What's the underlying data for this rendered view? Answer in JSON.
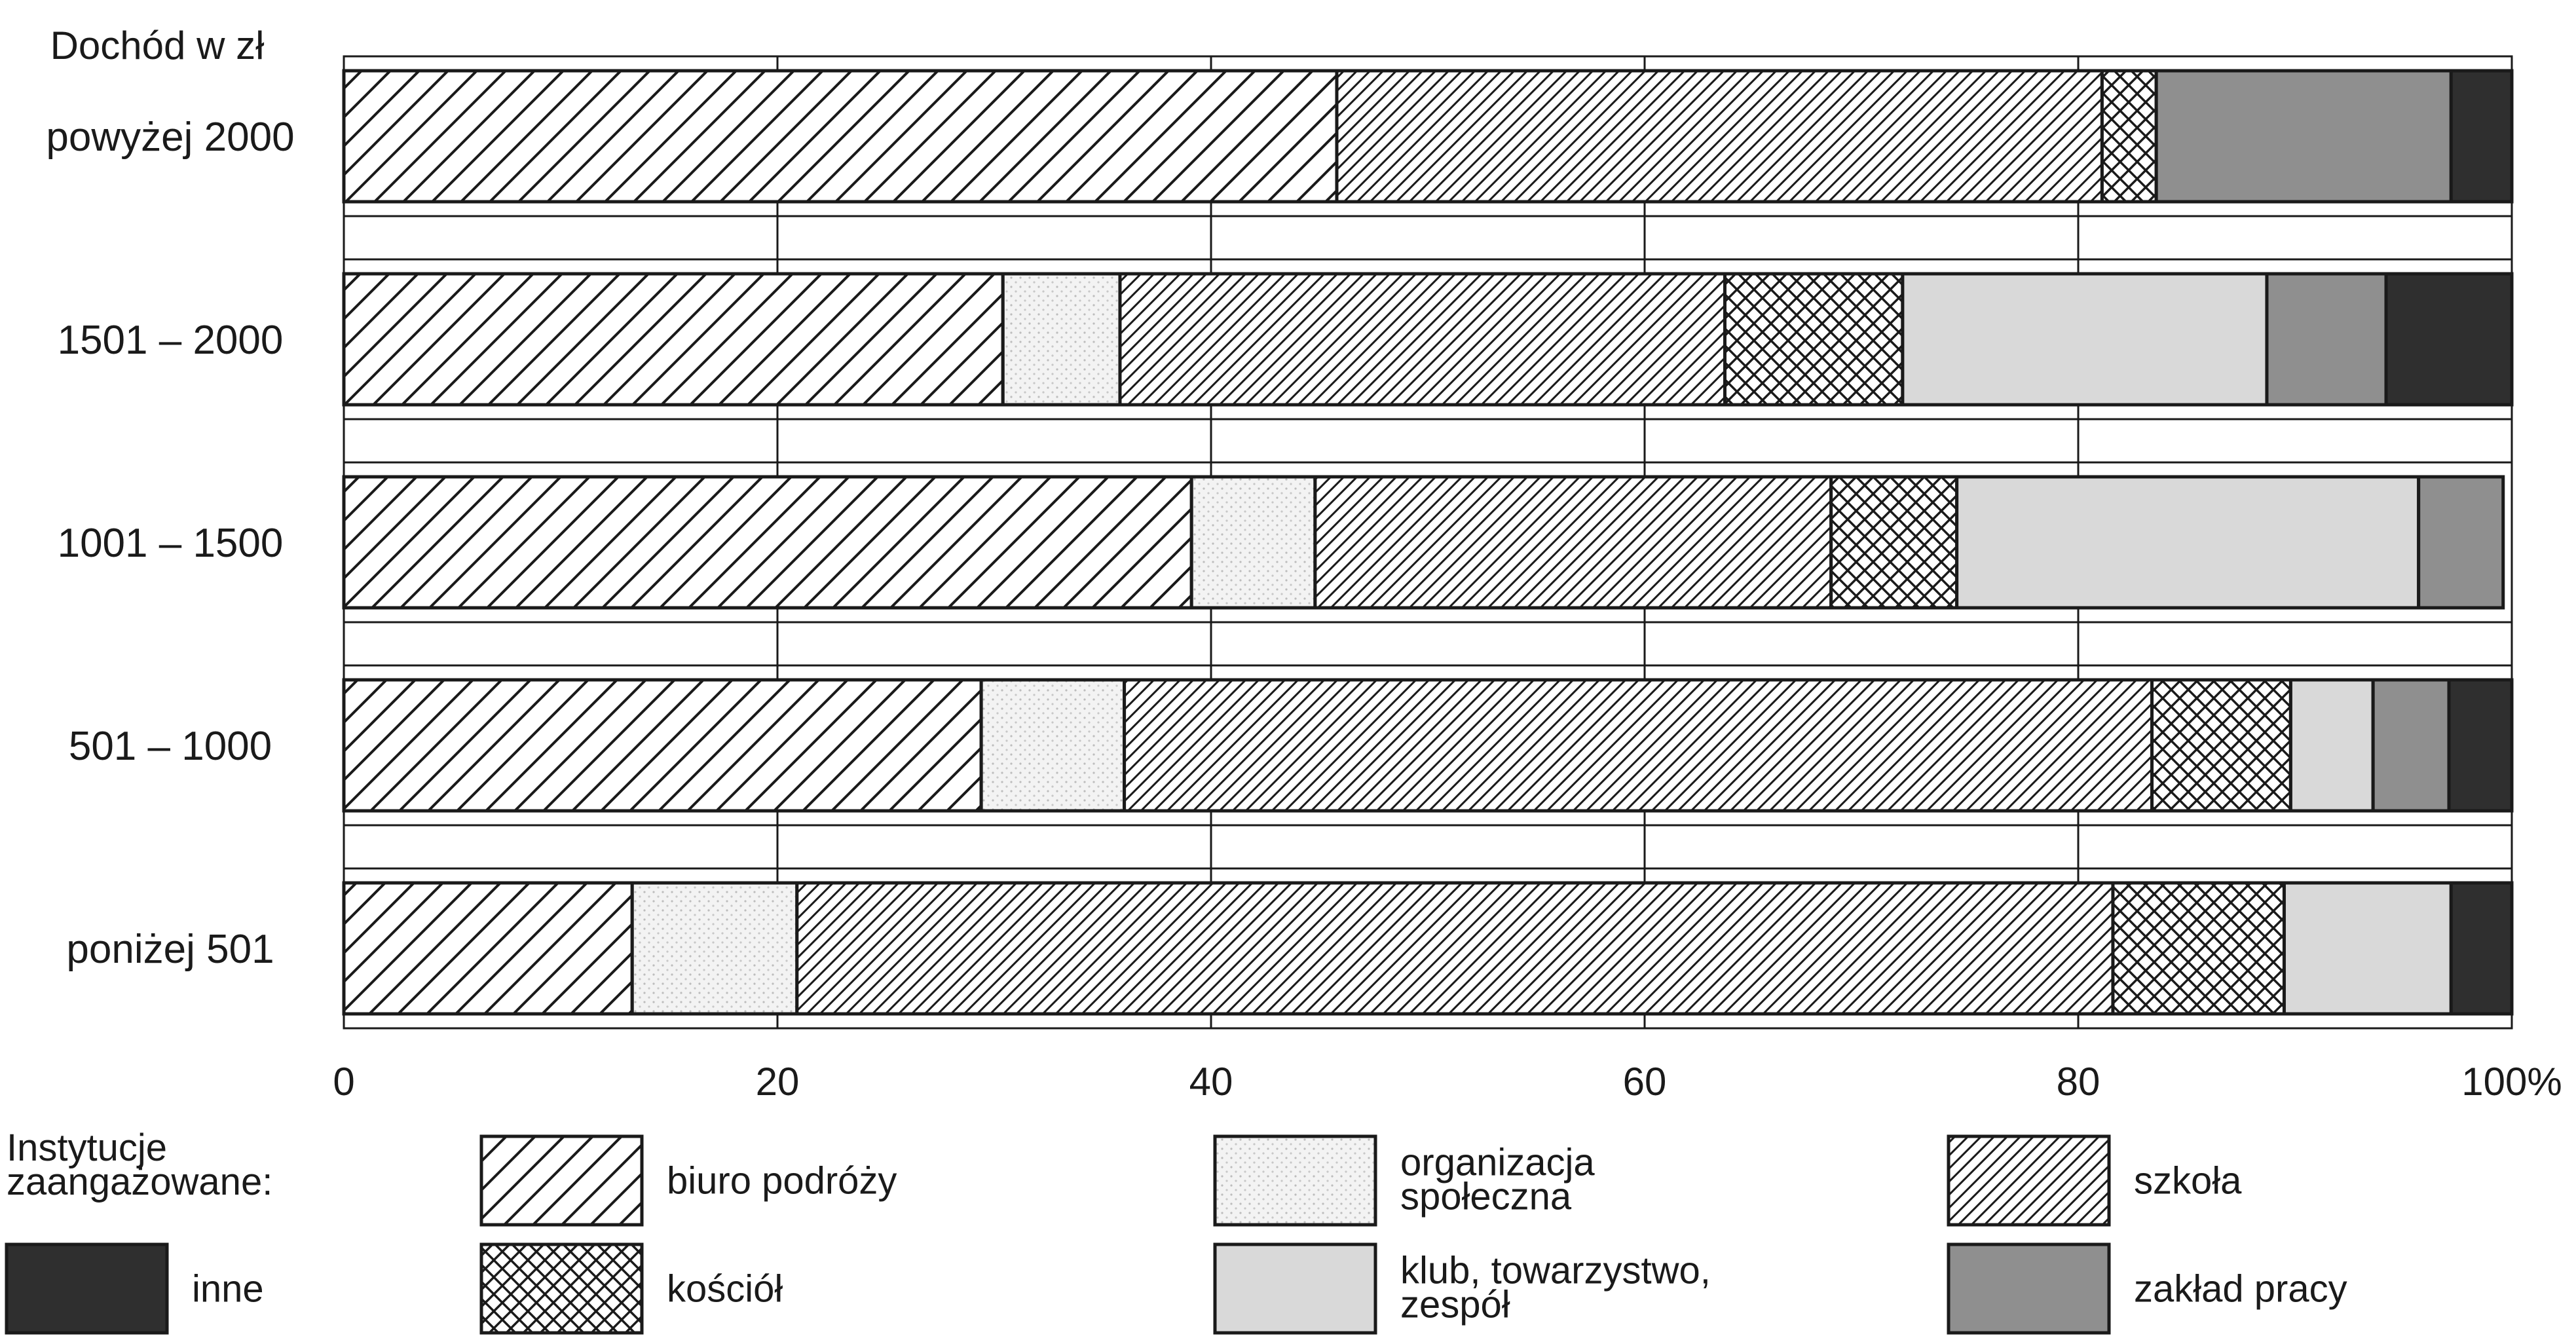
{
  "chart_data": {
    "type": "bar",
    "orientation": "horizontal",
    "stacked": true,
    "y_axis_title": "Dochód w zł",
    "categories": [
      "powyżej 2000",
      "1501 – 2000",
      "1001 – 1500",
      "501 – 1000",
      "poniżej 501"
    ],
    "x_ticks": [
      "0",
      "20",
      "40",
      "60",
      "80",
      "100%"
    ],
    "xlim": [
      0,
      100
    ],
    "grid": "vertical",
    "legend_title": "Instytucje zaangażowane:",
    "legend_position": "bottom",
    "series": [
      {
        "name": "biuro podróży",
        "pattern": "sparse-diagonal",
        "color": "#ffffff",
        "values": [
          45.8,
          30.4,
          39.1,
          29.4,
          13.3
        ]
      },
      {
        "name": "organizacja społeczna",
        "pattern": "light-dots",
        "color": "#f2f2f2",
        "values": [
          0,
          5.4,
          5.7,
          6.6,
          7.6
        ]
      },
      {
        "name": "szkoła",
        "pattern": "dense-diagonal",
        "color": "#ffffff",
        "values": [
          35.3,
          27.9,
          23.8,
          47.4,
          60.7
        ]
      },
      {
        "name": "kościół",
        "pattern": "crosshatch",
        "color": "#ffffff",
        "values": [
          2.5,
          8.2,
          5.8,
          6.4,
          7.9
        ]
      },
      {
        "name": "klub, towarzystwo, zespół",
        "pattern": "light-gray",
        "color": "#d9d9d9",
        "values": [
          0,
          16.8,
          21.3,
          3.8,
          7.7
        ]
      },
      {
        "name": "zakład pracy",
        "pattern": "mid-gray",
        "color": "#8f8f8f",
        "values": [
          13.6,
          5.5,
          3.9,
          3.5,
          0
        ]
      },
      {
        "name": "inne",
        "pattern": "dark",
        "color": "#2f2f2f",
        "values": [
          2.8,
          5.8,
          0,
          2.9,
          2.8
        ]
      }
    ],
    "legend_layout": [
      [
        "biuro podróży",
        "organizacja społeczna",
        "szkoła"
      ],
      [
        "inne",
        "kościół",
        "klub, towarzystwo, zespół",
        "zakład pracy"
      ]
    ]
  }
}
